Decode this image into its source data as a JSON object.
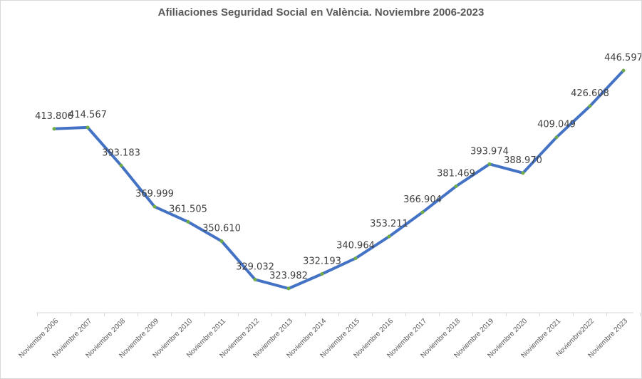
{
  "chart_data": {
    "type": "line",
    "title": "Afiliaciones Seguridad Social en València. Noviembre 2006-2023",
    "xlabel": "",
    "ylabel": "",
    "categories": [
      "Noviembre 2006",
      "Noviembre 2007",
      "Noviembre 2008",
      "Noviembre 2009",
      "Noviembre 2010",
      "Noviembre 2011",
      "Noviembre 2012",
      "Noviembre 2013",
      "Noviembre 2014",
      "Noviembre 2015",
      "Noviembre 2016",
      "Noviembre 2017",
      "Noviembre 2018",
      "Noviembre 2019",
      "Noviembre 2020",
      "Noviembre 2021",
      "Noviembre2022",
      "Noviembre 2023"
    ],
    "series": [
      {
        "values": [
          413806,
          414567,
          393183,
          369999,
          361505,
          350610,
          329032,
          323982,
          332193,
          340964,
          353211,
          366904,
          381469,
          393974,
          388970,
          409049,
          426608,
          446597
        ],
        "labels": [
          "413.806",
          "414.567",
          "393.183",
          "369.999",
          "361.505",
          "350.610",
          "329.032",
          "323.982",
          "332.193",
          "340.964",
          "353.211",
          "366.904",
          "381.469",
          "393.974",
          "388.970",
          "409.049",
          "426.608",
          "446.597"
        ]
      }
    ],
    "line_color": "#4472C4",
    "marker_color": "#70AD47",
    "grid": false,
    "legend": "none"
  }
}
